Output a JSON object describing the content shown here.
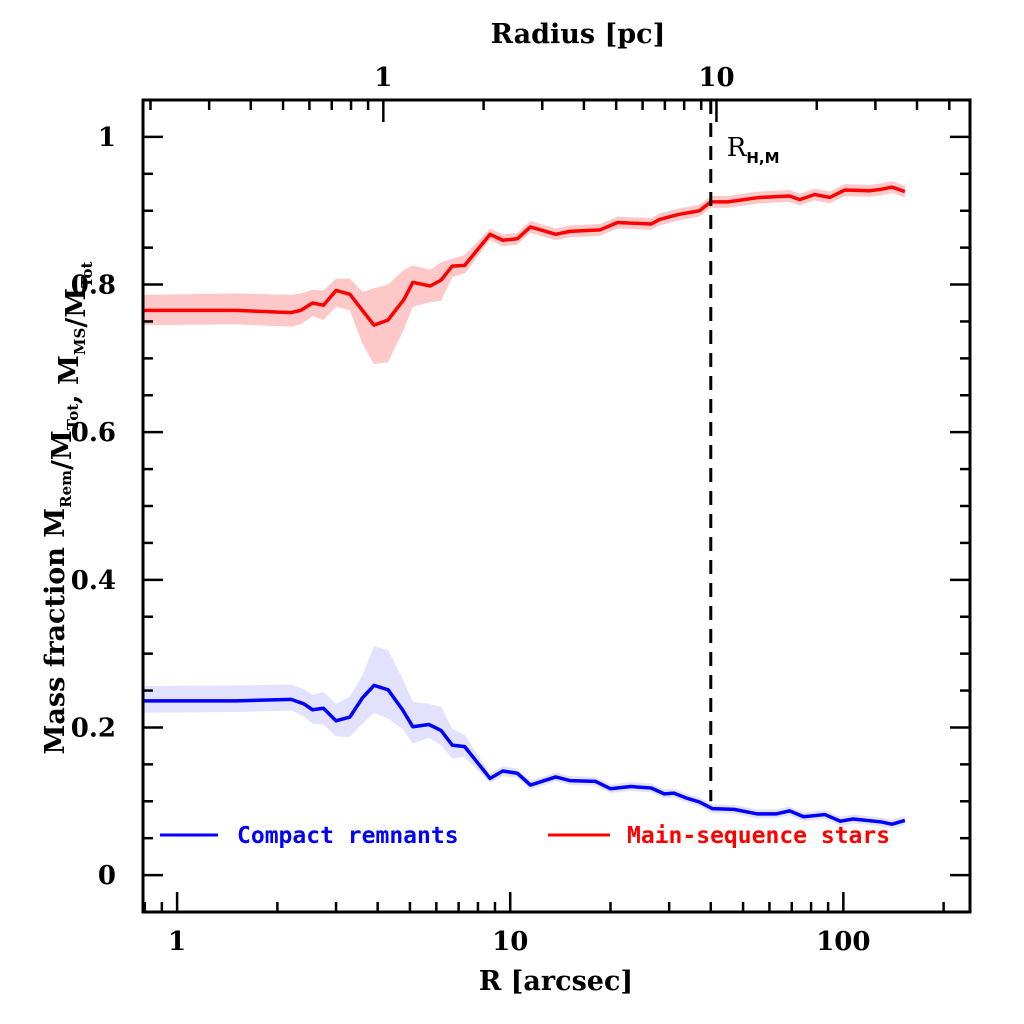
{
  "chart_data": {
    "type": "line",
    "title": "",
    "xlabel": "R [arcsec]",
    "x2label": "Radius [pc]",
    "ylabel": {
      "prefix": "Mass fraction",
      "parts": [
        {
          "base": "M",
          "sub": "Rem"
        },
        {
          "text": "/"
        },
        {
          "base": "M",
          "sub": "Tot"
        },
        {
          "text": ", "
        },
        {
          "base": "M",
          "sub": "MS"
        },
        {
          "text": "/"
        },
        {
          "base": "M",
          "sub": "Tot"
        }
      ]
    },
    "xscale": "log",
    "xlim": [
      0.79,
      240
    ],
    "ylim": [
      -0.05,
      1.05
    ],
    "x_ticks": [
      1,
      10,
      100
    ],
    "x_tick_labels": [
      "1",
      "10",
      "100"
    ],
    "x2_ticks_pc": [
      1,
      10
    ],
    "x2_tick_labels": [
      "1",
      "10"
    ],
    "x2_pc_to_arcsec": 4.0,
    "y_ticks": [
      0,
      0.2,
      0.4,
      0.6,
      0.8,
      1.0
    ],
    "y_tick_labels": [
      "0",
      "0.2",
      "0.4",
      "0.6",
      "0.8",
      "1"
    ],
    "y_minor_step": 0.05,
    "grid": false,
    "legend_position": "bottom",
    "annotations": [
      {
        "type": "vline",
        "x": 40,
        "style": "dashed",
        "color": "#000000",
        "label_base": "R",
        "label_sub": "H,M"
      }
    ],
    "series": [
      {
        "name": "Compact remnants",
        "color": "#0000ff",
        "band_color": "#e2e2ff",
        "x": [
          0.79,
          1.5,
          2.2,
          2.4,
          2.55,
          2.75,
          3.0,
          3.3,
          3.6,
          3.9,
          4.3,
          4.75,
          5.1,
          5.7,
          6.2,
          6.7,
          7.3,
          8.7,
          9.5,
          10.5,
          11.5,
          13.7,
          15.1,
          18,
          20,
          23,
          26.5,
          29,
          31,
          34,
          37,
          40.5,
          47,
          55,
          63,
          69,
          76,
          88,
          98,
          107,
          130,
          140,
          153
        ],
        "values": [
          0.236,
          0.236,
          0.238,
          0.232,
          0.224,
          0.226,
          0.209,
          0.214,
          0.24,
          0.257,
          0.251,
          0.224,
          0.201,
          0.204,
          0.196,
          0.176,
          0.174,
          0.131,
          0.141,
          0.138,
          0.122,
          0.133,
          0.128,
          0.127,
          0.117,
          0.12,
          0.118,
          0.11,
          0.111,
          0.104,
          0.099,
          0.09,
          0.089,
          0.083,
          0.083,
          0.087,
          0.079,
          0.082,
          0.073,
          0.076,
          0.072,
          0.069,
          0.074
        ],
        "lower": [
          0.22,
          0.221,
          0.223,
          0.215,
          0.205,
          0.204,
          0.188,
          0.187,
          0.205,
          0.22,
          0.212,
          0.198,
          0.178,
          0.186,
          0.176,
          0.158,
          0.16,
          0.125,
          0.134,
          0.132,
          0.116,
          0.127,
          0.122,
          0.121,
          0.111,
          0.114,
          0.112,
          0.104,
          0.105,
          0.098,
          0.093,
          0.084,
          0.083,
          0.077,
          0.077,
          0.081,
          0.073,
          0.076,
          0.067,
          0.07,
          0.066,
          0.063,
          0.068
        ],
        "upper": [
          0.256,
          0.257,
          0.258,
          0.252,
          0.244,
          0.248,
          0.232,
          0.242,
          0.27,
          0.31,
          0.305,
          0.266,
          0.235,
          0.232,
          0.228,
          0.198,
          0.19,
          0.137,
          0.148,
          0.144,
          0.128,
          0.139,
          0.134,
          0.133,
          0.123,
          0.126,
          0.124,
          0.116,
          0.117,
          0.11,
          0.105,
          0.096,
          0.095,
          0.089,
          0.089,
          0.093,
          0.085,
          0.088,
          0.079,
          0.082,
          0.078,
          0.075,
          0.08
        ]
      },
      {
        "name": "Main-sequence stars",
        "color": "#ff0000",
        "band_color": "#ffc8c8",
        "x": [
          0.79,
          1.5,
          2.2,
          2.35,
          2.55,
          2.75,
          3.0,
          3.3,
          3.6,
          3.9,
          4.3,
          4.8,
          5.1,
          5.75,
          6.2,
          6.7,
          7.3,
          8.7,
          9.5,
          10.5,
          11.5,
          13.7,
          15.1,
          18.6,
          21,
          26.5,
          28,
          32,
          37,
          40,
          45,
          56,
          69,
          74,
          82,
          91,
          101,
          120,
          130,
          140,
          153
        ],
        "values": [
          0.765,
          0.765,
          0.762,
          0.765,
          0.775,
          0.772,
          0.792,
          0.787,
          0.765,
          0.745,
          0.752,
          0.78,
          0.803,
          0.798,
          0.806,
          0.825,
          0.826,
          0.868,
          0.86,
          0.862,
          0.878,
          0.868,
          0.872,
          0.874,
          0.884,
          0.882,
          0.888,
          0.895,
          0.9,
          0.912,
          0.912,
          0.918,
          0.92,
          0.915,
          0.922,
          0.918,
          0.928,
          0.927,
          0.929,
          0.932,
          0.926
        ],
        "lower": [
          0.745,
          0.746,
          0.743,
          0.746,
          0.757,
          0.752,
          0.77,
          0.765,
          0.72,
          0.692,
          0.695,
          0.74,
          0.77,
          0.776,
          0.778,
          0.81,
          0.815,
          0.86,
          0.852,
          0.854,
          0.87,
          0.86,
          0.864,
          0.866,
          0.876,
          0.874,
          0.88,
          0.887,
          0.892,
          0.904,
          0.904,
          0.91,
          0.912,
          0.907,
          0.914,
          0.91,
          0.92,
          0.919,
          0.921,
          0.924,
          0.918
        ],
        "upper": [
          0.786,
          0.788,
          0.786,
          0.788,
          0.793,
          0.792,
          0.808,
          0.808,
          0.79,
          0.795,
          0.8,
          0.82,
          0.826,
          0.82,
          0.83,
          0.835,
          0.84,
          0.876,
          0.868,
          0.87,
          0.886,
          0.876,
          0.88,
          0.882,
          0.892,
          0.89,
          0.896,
          0.903,
          0.908,
          0.92,
          0.92,
          0.926,
          0.928,
          0.923,
          0.93,
          0.926,
          0.936,
          0.935,
          0.937,
          0.94,
          0.934
        ]
      }
    ]
  }
}
